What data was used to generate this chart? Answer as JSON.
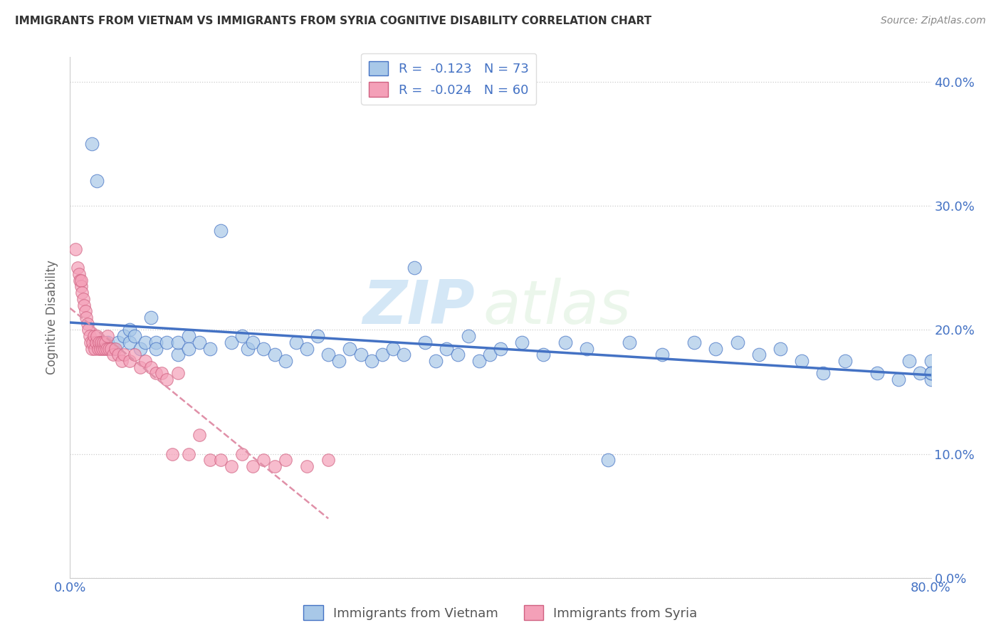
{
  "title": "IMMIGRANTS FROM VIETNAM VS IMMIGRANTS FROM SYRIA COGNITIVE DISABILITY CORRELATION CHART",
  "source": "Source: ZipAtlas.com",
  "ylabel": "Cognitive Disability",
  "legend_r1": "R =  -0.123   N = 73",
  "legend_r2": "R =  -0.024   N = 60",
  "color_vietnam": "#a8c8e8",
  "color_syria": "#f4a0b8",
  "color_vietnam_line": "#4472c4",
  "color_syria_line": "#f4a0b8",
  "color_axis": "#4472c4",
  "color_legend_text": "#4472c4",
  "watermark_zip": "ZIP",
  "watermark_atlas": "atlas",
  "vietnam_x": [
    0.02,
    0.025,
    0.03,
    0.035,
    0.04,
    0.045,
    0.05,
    0.055,
    0.055,
    0.06,
    0.065,
    0.07,
    0.075,
    0.08,
    0.08,
    0.09,
    0.1,
    0.1,
    0.11,
    0.11,
    0.12,
    0.13,
    0.14,
    0.15,
    0.16,
    0.165,
    0.17,
    0.18,
    0.19,
    0.2,
    0.21,
    0.22,
    0.23,
    0.24,
    0.25,
    0.26,
    0.27,
    0.28,
    0.29,
    0.3,
    0.31,
    0.32,
    0.33,
    0.34,
    0.35,
    0.36,
    0.37,
    0.38,
    0.39,
    0.4,
    0.42,
    0.44,
    0.46,
    0.48,
    0.5,
    0.52,
    0.55,
    0.58,
    0.6,
    0.62,
    0.64,
    0.66,
    0.68,
    0.7,
    0.72,
    0.75,
    0.77,
    0.78,
    0.79,
    0.8,
    0.8,
    0.8,
    0.8
  ],
  "vietnam_y": [
    0.35,
    0.32,
    0.19,
    0.19,
    0.185,
    0.19,
    0.195,
    0.2,
    0.19,
    0.195,
    0.185,
    0.19,
    0.21,
    0.19,
    0.185,
    0.19,
    0.18,
    0.19,
    0.195,
    0.185,
    0.19,
    0.185,
    0.28,
    0.19,
    0.195,
    0.185,
    0.19,
    0.185,
    0.18,
    0.175,
    0.19,
    0.185,
    0.195,
    0.18,
    0.175,
    0.185,
    0.18,
    0.175,
    0.18,
    0.185,
    0.18,
    0.25,
    0.19,
    0.175,
    0.185,
    0.18,
    0.195,
    0.175,
    0.18,
    0.185,
    0.19,
    0.18,
    0.19,
    0.185,
    0.095,
    0.19,
    0.18,
    0.19,
    0.185,
    0.19,
    0.18,
    0.185,
    0.175,
    0.165,
    0.175,
    0.165,
    0.16,
    0.175,
    0.165,
    0.16,
    0.165,
    0.175,
    0.165
  ],
  "syria_x": [
    0.005,
    0.007,
    0.008,
    0.009,
    0.01,
    0.01,
    0.011,
    0.012,
    0.013,
    0.014,
    0.015,
    0.016,
    0.017,
    0.018,
    0.019,
    0.02,
    0.021,
    0.022,
    0.023,
    0.024,
    0.025,
    0.026,
    0.027,
    0.028,
    0.029,
    0.03,
    0.031,
    0.032,
    0.033,
    0.034,
    0.035,
    0.036,
    0.038,
    0.04,
    0.042,
    0.045,
    0.048,
    0.05,
    0.055,
    0.06,
    0.065,
    0.07,
    0.075,
    0.08,
    0.085,
    0.09,
    0.095,
    0.1,
    0.11,
    0.12,
    0.13,
    0.14,
    0.15,
    0.16,
    0.17,
    0.18,
    0.19,
    0.2,
    0.22,
    0.24
  ],
  "syria_y": [
    0.265,
    0.25,
    0.245,
    0.24,
    0.235,
    0.24,
    0.23,
    0.225,
    0.22,
    0.215,
    0.21,
    0.205,
    0.2,
    0.195,
    0.19,
    0.185,
    0.19,
    0.195,
    0.185,
    0.19,
    0.195,
    0.185,
    0.19,
    0.185,
    0.19,
    0.185,
    0.19,
    0.185,
    0.19,
    0.185,
    0.195,
    0.185,
    0.185,
    0.18,
    0.185,
    0.18,
    0.175,
    0.18,
    0.175,
    0.18,
    0.17,
    0.175,
    0.17,
    0.165,
    0.165,
    0.16,
    0.1,
    0.165,
    0.1,
    0.115,
    0.095,
    0.095,
    0.09,
    0.1,
    0.09,
    0.095,
    0.09,
    0.095,
    0.09,
    0.095
  ],
  "xlim": [
    0.0,
    0.8
  ],
  "ylim": [
    0.0,
    0.42
  ],
  "xticks": [
    0.0,
    0.1,
    0.2,
    0.3,
    0.4,
    0.5,
    0.6,
    0.7,
    0.8
  ],
  "xtick_labels": [
    "0.0%",
    "",
    "",
    "",
    "",
    "",
    "",
    "",
    "80.0%"
  ],
  "yticks": [
    0.0,
    0.1,
    0.2,
    0.3,
    0.4
  ],
  "ytick_labels_right": [
    "0.0%",
    "10.0%",
    "20.0%",
    "30.0%",
    "40.0%"
  ]
}
